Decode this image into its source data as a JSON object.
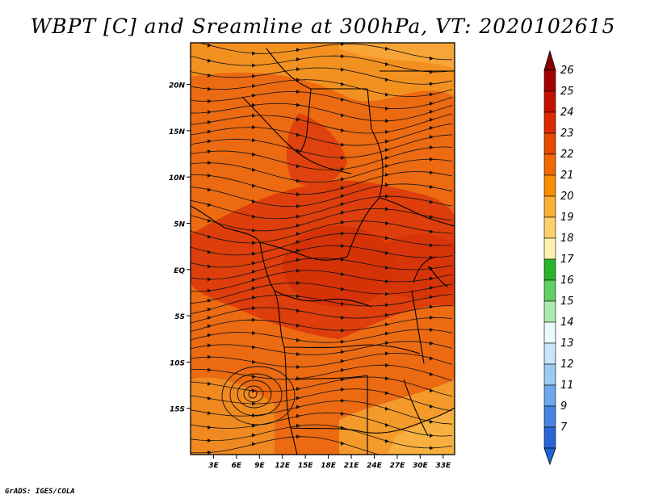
{
  "title": "WBPT [C] and Sreamline at 300hPa, VT: 2020102615",
  "credit": "GrADS: IGES/COLA",
  "map": {
    "lat_labels": [
      "20N",
      "15N",
      "10N",
      "5N",
      "EQ",
      "5S",
      "10S",
      "15S"
    ],
    "lat_values": [
      20,
      15,
      10,
      5,
      0,
      -5,
      -10,
      -15
    ],
    "lon_labels": [
      "3E",
      "6E",
      "9E",
      "12E",
      "15E",
      "18E",
      "21E",
      "24E",
      "27E",
      "30E",
      "33E"
    ],
    "lon_values": [
      3,
      6,
      9,
      12,
      15,
      18,
      21,
      24,
      27,
      30,
      33
    ],
    "lon_range": [
      0,
      34.5
    ],
    "lat_range": [
      -20,
      24.5
    ],
    "cyclone_center": {
      "lon": 8.5,
      "lat": -14
    }
  },
  "colorbar": {
    "labels": [
      "26",
      "25",
      "24",
      "23",
      "22",
      "21",
      "20",
      "19",
      "18",
      "17",
      "16",
      "15",
      "14",
      "13",
      "12",
      "11",
      "9",
      "7"
    ],
    "colors": [
      "#a50000",
      "#c41200",
      "#dd2a00",
      "#e84a00",
      "#f06a00",
      "#f78f00",
      "#fbb035",
      "#fdd06b",
      "#fff2b0",
      "#2bb42b",
      "#63d063",
      "#aeeaae",
      "#eafbfb",
      "#c8e6fa",
      "#9ccaf2",
      "#6ea8ec",
      "#4884e0",
      "#2a66d8"
    ],
    "top_arrow_color": "#8a0000",
    "bottom_arrow_color": "#1e64d8"
  }
}
